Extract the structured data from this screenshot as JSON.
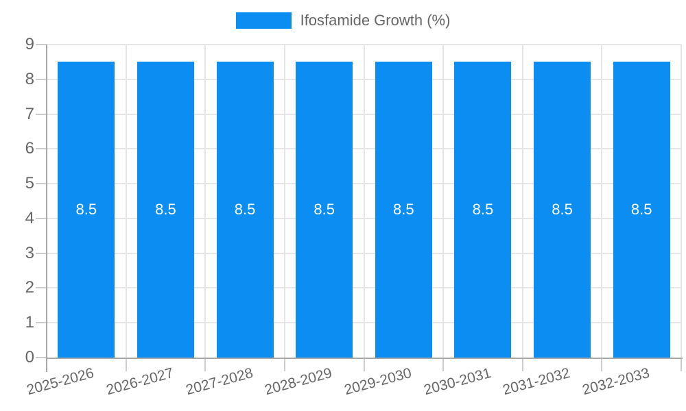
{
  "legend": {
    "series_label": "Ifosfamide Growth (%)"
  },
  "chart_data": {
    "type": "bar",
    "title": "Ifosfamide Growth (%)",
    "categories": [
      "2025-2026",
      "2026-2027",
      "2027-2028",
      "2028-2029",
      "2029-2030",
      "2030-2031",
      "2031-2032",
      "2032-2033"
    ],
    "series": [
      {
        "name": "Ifosfamide Growth (%)",
        "values": [
          8.5,
          8.5,
          8.5,
          8.5,
          8.5,
          8.5,
          8.5,
          8.5
        ]
      }
    ],
    "value_labels": [
      "8.5",
      "8.5",
      "8.5",
      "8.5",
      "8.5",
      "8.5",
      "8.5",
      "8.5"
    ],
    "ytick_labels": [
      "0",
      "1",
      "2",
      "3",
      "4",
      "5",
      "6",
      "7",
      "8",
      "9"
    ],
    "ylim": [
      0,
      9
    ],
    "ytick_step": 1,
    "xlabel": "",
    "ylabel": "",
    "grid": true,
    "legend_position": "top-center",
    "x_label_rotation_deg": -15,
    "colors": {
      "bar": "#0b8df2",
      "bar_value_label": "#ffffff",
      "axis_text": "#666666",
      "grid_line": "#e5e5e5",
      "axis_line": "#a8a8a8",
      "tick_line": "#cccccc",
      "background": "#ffffff"
    }
  }
}
